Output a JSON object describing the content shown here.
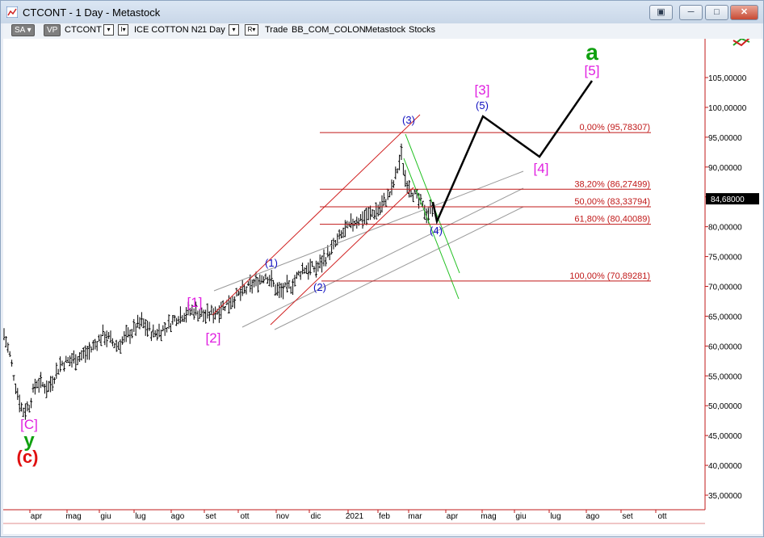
{
  "window": {
    "title": "CTCONT - 1 Day - Metastock",
    "buttons": [
      "▣",
      "─",
      "□",
      "✕"
    ]
  },
  "toolbar": {
    "sa_label": "SA",
    "vp_label": "VP",
    "symbol": "CTCONT",
    "name": "ICE COTTON N2",
    "period": "1 Day",
    "r_label": "R",
    "trade_label": "Trade",
    "source": "BB_COM_COLON",
    "app": "Metastock",
    "type": "Stocks"
  },
  "chart_data": {
    "type": "ohlc",
    "price_label": "84,68000",
    "ylim": [
      32,
      112
    ],
    "y_ticks": [
      "35,00000",
      "40,00000",
      "45,00000",
      "50,00000",
      "55,00000",
      "60,00000",
      "65,00000",
      "70,00000",
      "75,00000",
      "80,00000",
      "85,00000",
      "90,00000",
      "95,00000",
      "100,00000",
      "105,00000"
    ],
    "x_ticks": [
      "apr",
      "mag",
      "giu",
      "lug",
      "ago",
      "set",
      "ott",
      "nov",
      "dic",
      "2021",
      "feb",
      "mar",
      "apr",
      "mag",
      "giu",
      "lug",
      "ago",
      "set",
      "ott"
    ],
    "fib_levels": [
      {
        "label": "0,00% (95,78307)",
        "value": 95.78307
      },
      {
        "label": "38,20% (86,27499)",
        "value": 86.27499
      },
      {
        "label": "50,00% (83,33794)",
        "value": 83.33794
      },
      {
        "label": "61,80% (80,40089)",
        "value": 80.40089
      },
      {
        "label": "100,00% (70,89281)",
        "value": 70.89281
      }
    ],
    "wave_labels": [
      {
        "text": "[C]",
        "color": "#e020e0",
        "bracketed": true
      },
      {
        "text": "y",
        "color": "#10a010"
      },
      {
        "text": "(c)",
        "color": "#e01010"
      },
      {
        "text": "[1]",
        "color": "#e020e0"
      },
      {
        "text": "[2]",
        "color": "#e020e0"
      },
      {
        "text": "(1)",
        "color": "#1010c0"
      },
      {
        "text": "(2)",
        "color": "#1010c0"
      },
      {
        "text": "(3)",
        "color": "#1010c0"
      },
      {
        "text": "(4)",
        "color": "#1010c0"
      },
      {
        "text": "(5)",
        "color": "#1010c0"
      },
      {
        "text": "[3]",
        "color": "#e020e0"
      },
      {
        "text": "[4]",
        "color": "#e020e0"
      },
      {
        "text": "[5]",
        "color": "#e020e0"
      },
      {
        "text": "a",
        "color": "#10a010"
      }
    ],
    "colors": {
      "fib": "#c01818",
      "grid": "#e07070",
      "bars": "#000000",
      "channel_grey": "#9a9a9a",
      "channel_green": "#20c020",
      "channel_red": "#d02020",
      "projection": "#000000"
    }
  }
}
